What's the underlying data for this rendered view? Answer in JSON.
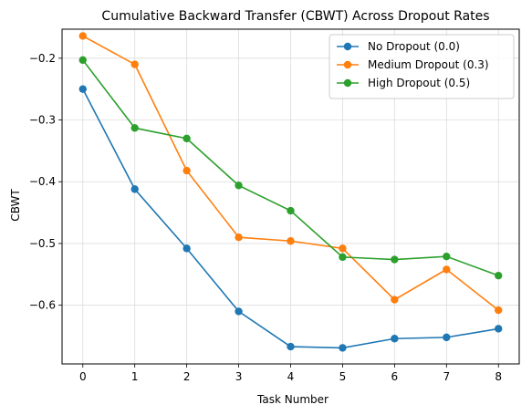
{
  "chart_data": {
    "type": "line",
    "title": "Cumulative Backward Transfer (CBWT) Across Dropout Rates",
    "xlabel": "Task Number",
    "ylabel": "CBWT",
    "x": [
      0,
      1,
      2,
      3,
      4,
      5,
      6,
      7,
      8
    ],
    "xlim": [
      -0.4,
      8.4
    ],
    "ylim": [
      -0.695,
      -0.153
    ],
    "yticks": [
      -0.2,
      -0.3,
      -0.4,
      -0.5,
      -0.6
    ],
    "ytick_labels": [
      "−0.2",
      "−0.3",
      "−0.4",
      "−0.5",
      "−0.6"
    ],
    "xtick_labels": [
      "0",
      "1",
      "2",
      "3",
      "4",
      "5",
      "6",
      "7",
      "8"
    ],
    "grid": true,
    "legend_position": "top-right",
    "series": [
      {
        "name": "No Dropout (0.0)",
        "color": "#1f77b4",
        "values": [
          -0.25,
          -0.412,
          -0.508,
          -0.61,
          -0.667,
          -0.669,
          -0.654,
          -0.652,
          -0.638
        ]
      },
      {
        "name": "Medium Dropout (0.3)",
        "color": "#ff7f0e",
        "values": [
          -0.164,
          -0.21,
          -0.382,
          -0.49,
          -0.496,
          -0.508,
          -0.591,
          -0.542,
          -0.608
        ]
      },
      {
        "name": "High Dropout (0.5)",
        "color": "#2ca02c",
        "values": [
          -0.203,
          -0.313,
          -0.33,
          -0.406,
          -0.447,
          -0.522,
          -0.526,
          -0.521,
          -0.552
        ]
      }
    ]
  }
}
